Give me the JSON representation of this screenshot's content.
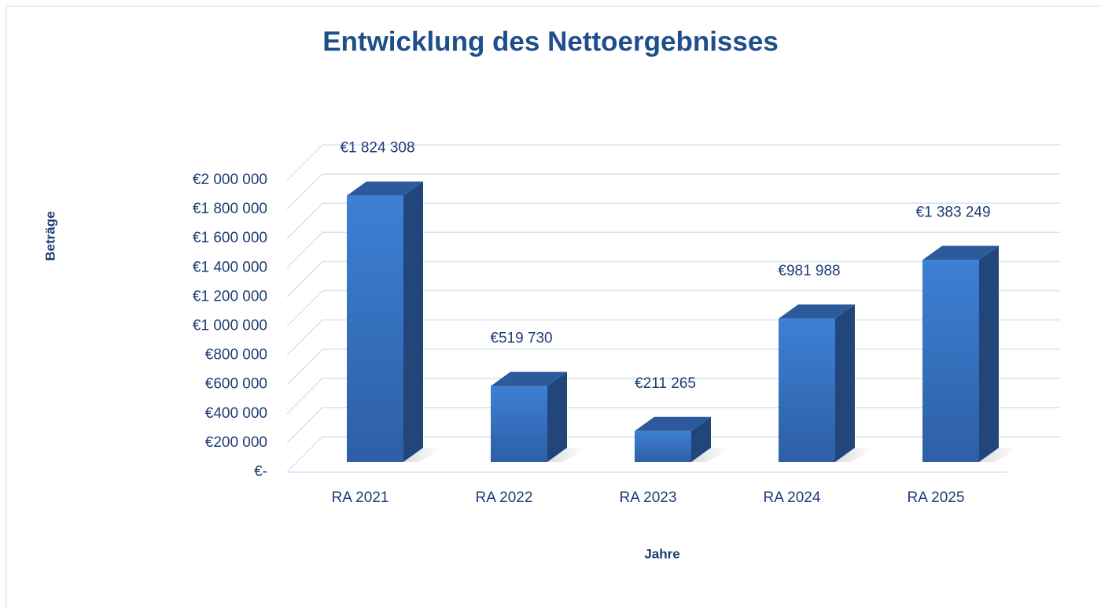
{
  "chart_data": {
    "type": "bar3d",
    "title": "Entwicklung des Nettoergebnisses",
    "x_label": "Jahre",
    "y_label": "Beträge",
    "categories": [
      "RA 2021",
      "RA 2022",
      "RA 2023",
      "RA 2024",
      "RA 2025"
    ],
    "values": [
      1824308,
      519730,
      211265,
      981988,
      1383249
    ],
    "value_labels": [
      "€1 824 308",
      "€519 730",
      "€211 265",
      "€981 988",
      "€1 383 249"
    ],
    "color": "#3a78c9",
    "ylim": [
      0,
      2000000
    ],
    "yticks": [
      {
        "value": 0,
        "label": "€-"
      },
      {
        "value": 200000,
        "label": "€200 000"
      },
      {
        "value": 400000,
        "label": "€400 000"
      },
      {
        "value": 600000,
        "label": "€600 000"
      },
      {
        "value": 800000,
        "label": "€800 000"
      },
      {
        "value": 1000000,
        "label": "€1 000 000"
      },
      {
        "value": 1200000,
        "label": "€1 200 000"
      },
      {
        "value": 1400000,
        "label": "€1 400 000"
      },
      {
        "value": 1600000,
        "label": "€1 600 000"
      },
      {
        "value": 1800000,
        "label": "€1 800 000"
      },
      {
        "value": 2000000,
        "label": "€2 000 000"
      }
    ],
    "grid": true
  }
}
